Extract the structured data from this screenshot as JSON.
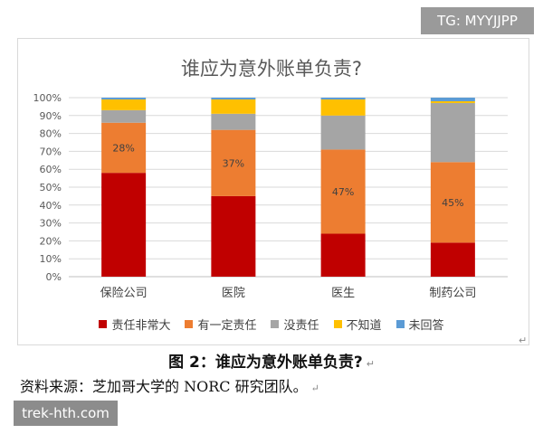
{
  "tag": "TG: MYYJJPP",
  "watermark": "trek-hth.com",
  "caption": "图 2：谁应为意外账单负责?",
  "source": "资料来源：芝加哥大学的 NORC 研究团队。",
  "chart_data": {
    "type": "bar",
    "stacked": true,
    "title": "谁应为意外账单负责?",
    "xlabel": "",
    "ylabel": "",
    "ylim": [
      0,
      100
    ],
    "yticks": [
      "0%",
      "10%",
      "20%",
      "30%",
      "40%",
      "50%",
      "60%",
      "70%",
      "80%",
      "90%",
      "100%"
    ],
    "categories": [
      "保险公司",
      "医院",
      "医生",
      "制药公司"
    ],
    "grid": true,
    "legend_position": "bottom",
    "series": [
      {
        "name": "责任非常大",
        "color": "#c00000",
        "values": [
          58,
          45,
          24,
          19
        ],
        "labels": [
          "58%",
          "45%",
          "24%",
          "19%"
        ],
        "label_color": "#c00000"
      },
      {
        "name": "有一定责任",
        "color": "#ed7d31",
        "values": [
          28,
          37,
          47,
          45
        ],
        "labels": [
          "28%",
          "37%",
          "47%",
          "45%"
        ],
        "label_color": "#404040"
      },
      {
        "name": "没责任",
        "color": "#a5a5a5",
        "values": [
          7,
          9,
          19,
          33
        ],
        "labels": [
          "",
          "",
          "",
          ""
        ],
        "label_color": "#404040"
      },
      {
        "name": "不知道",
        "color": "#ffc000",
        "values": [
          6,
          8,
          9,
          1
        ],
        "labels": [
          "",
          "",
          "",
          ""
        ],
        "label_color": "#404040"
      },
      {
        "name": "未回答",
        "color": "#5b9bd5",
        "values": [
          1,
          1,
          1,
          2
        ],
        "labels": [
          "",
          "",
          "",
          ""
        ],
        "label_color": "#404040"
      }
    ]
  }
}
